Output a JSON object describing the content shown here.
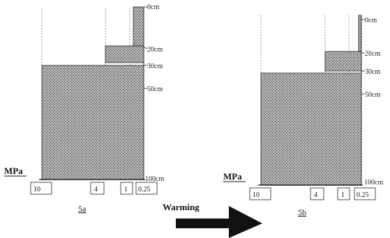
{
  "panel_a": {
    "caption": "5a",
    "unit": "MPa",
    "depths": [
      "0cm",
      "20cm",
      "30cm",
      "50cm",
      "100cm"
    ],
    "pressures": [
      "10",
      "4",
      "1",
      "0.25"
    ]
  },
  "panel_b": {
    "caption": "5b",
    "unit": "MPa",
    "depths": [
      "0cm",
      "20cm",
      "30cm",
      "50cm",
      "100cm"
    ],
    "pressures": [
      "10",
      "4",
      "1",
      "0.25"
    ]
  },
  "arrow": {
    "label": "Warming"
  }
}
